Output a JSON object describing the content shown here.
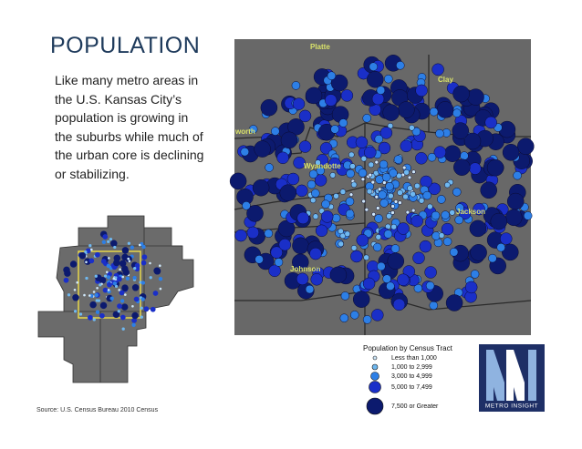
{
  "title": "POPULATION",
  "description": [
    "Like many metro areas in",
    "the U.S. Kansas City’s",
    "population is growing in",
    "the suburbs while much of",
    "the urban core is declining",
    "or stabilizing."
  ],
  "source": "Source: U.S. Census Bureau 2010 Census",
  "map": {
    "county_labels": [
      "Platte",
      "Clay",
      "worth",
      "Wyandotte",
      "Jackson",
      "Johnson"
    ]
  },
  "legend": {
    "title": "Population by Census Tract",
    "items": [
      "Less than 1,000",
      "1,000 to 2,999",
      "3,000 to 4,999",
      "5,000 to 7,499",
      "7,500 or Greater"
    ]
  },
  "logo": {
    "text": "METRO INSIGHT"
  }
}
